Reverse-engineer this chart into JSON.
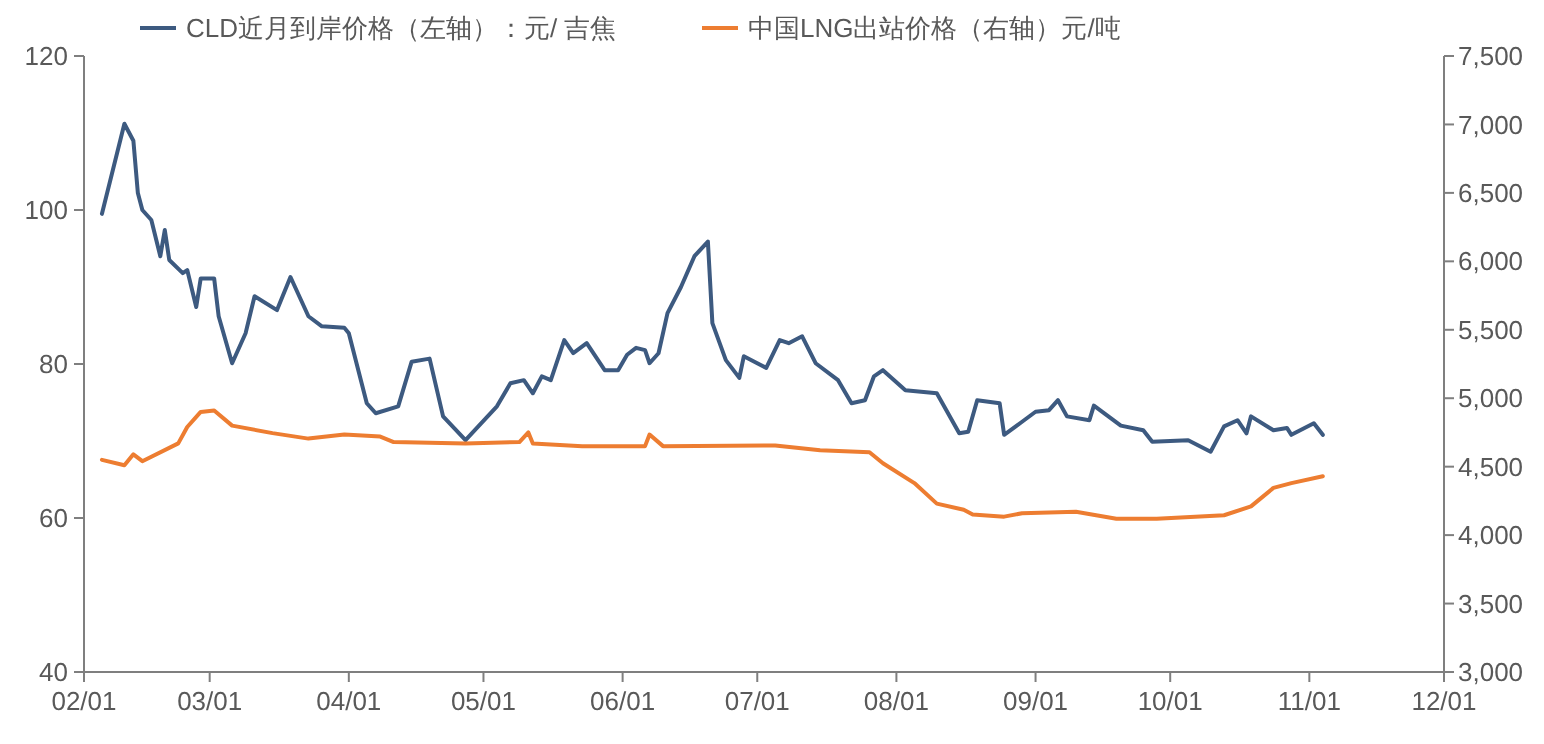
{
  "chart_data": {
    "type": "line",
    "xlim": [
      "--02-01",
      "--12-01"
    ],
    "xticks": [
      {
        "value": "--02-01",
        "label": "02/01"
      },
      {
        "value": "--03-01",
        "label": "03/01"
      },
      {
        "value": "--04-01",
        "label": "04/01"
      },
      {
        "value": "--05-01",
        "label": "05/01"
      },
      {
        "value": "--06-01",
        "label": "06/01"
      },
      {
        "value": "--07-01",
        "label": "07/01"
      },
      {
        "value": "--08-01",
        "label": "08/01"
      },
      {
        "value": "--09-01",
        "label": "09/01"
      },
      {
        "value": "--10-01",
        "label": "10/01"
      },
      {
        "value": "--11-01",
        "label": "11/01"
      },
      {
        "value": "--12-01",
        "label": "12/01"
      }
    ],
    "ylim": [
      40,
      120
    ],
    "yticks": [
      40,
      60,
      80,
      100,
      120
    ],
    "y2lim": [
      3000,
      7500
    ],
    "y2ticks": [
      {
        "value": 3000,
        "label": "3,000"
      },
      {
        "value": 3500,
        "label": "3,500"
      },
      {
        "value": 4000,
        "label": "4,000"
      },
      {
        "value": 4500,
        "label": "4,500"
      },
      {
        "value": 5000,
        "label": "5,000"
      },
      {
        "value": 5500,
        "label": "5,500"
      },
      {
        "value": 6000,
        "label": "6,000"
      },
      {
        "value": 6500,
        "label": "6,500"
      },
      {
        "value": 7000,
        "label": "7,000"
      },
      {
        "value": 7500,
        "label": "7,500"
      }
    ],
    "legend": "top",
    "grid": false,
    "marker": "none",
    "line_style": "solid",
    "series": [
      {
        "name": "CLD近月到岸价格（左轴）：元/ 吉焦",
        "color": "#3d5a80",
        "x": [
          "--02-05",
          "--02-10",
          "--02-12",
          "--02-13",
          "--02-14",
          "--02-16",
          "--02-18",
          "--02-19",
          "--02-20",
          "--02-23",
          "--02-24",
          "--02-26",
          "--02-27",
          "--03-02",
          "--03-03",
          "--03-06",
          "--03-09",
          "--03-11",
          "--03-16",
          "--03-19",
          "--03-23",
          "--03-26",
          "--03-31",
          "--04-01",
          "--04-05",
          "--04-07",
          "--04-12",
          "--04-15",
          "--04-19",
          "--04-22",
          "--04-27",
          "--05-04",
          "--05-07",
          "--05-10",
          "--05-12",
          "--05-14",
          "--05-16",
          "--05-19",
          "--05-21",
          "--05-24",
          "--05-28",
          "--05-31",
          "--06-02",
          "--06-04",
          "--06-06",
          "--06-07",
          "--06-09",
          "--06-11",
          "--06-14",
          "--06-17",
          "--06-20",
          "--06-21",
          "--06-24",
          "--06-27",
          "--06-28",
          "--07-03",
          "--07-06",
          "--07-08",
          "--07-11",
          "--07-14",
          "--07-19",
          "--07-22",
          "--07-25",
          "--07-27",
          "--07-29",
          "--08-03",
          "--08-10",
          "--08-15",
          "--08-17",
          "--08-19",
          "--08-24",
          "--08-25",
          "--08-29",
          "--09-01",
          "--09-04",
          "--09-06",
          "--09-08",
          "--09-13",
          "--09-14",
          "--09-20",
          "--09-25",
          "--09-27",
          "--10-05",
          "--10-10",
          "--10-13",
          "--10-16",
          "--10-18",
          "--10-19",
          "--10-24",
          "--10-27",
          "--10-28",
          "--11-02",
          "--11-04"
        ],
        "values": [
          99.5,
          111.2,
          109,
          102.2,
          100,
          98.7,
          94,
          97.4,
          93.5,
          91.8,
          92.2,
          87.4,
          91.1,
          91.1,
          86.2,
          80.1,
          84,
          88.8,
          87,
          91.3,
          86.2,
          84.9,
          84.7,
          84,
          74.9,
          73.6,
          74.5,
          80.3,
          80.7,
          73.2,
          70.1,
          74.5,
          77.5,
          77.9,
          76.2,
          78.4,
          77.9,
          83.1,
          81.4,
          82.7,
          79.2,
          79.2,
          81.2,
          82.1,
          81.8,
          80.1,
          81.4,
          86.6,
          90,
          94,
          95.9,
          85.3,
          80.5,
          78.2,
          81,
          79.5,
          83.1,
          82.7,
          83.6,
          80.1,
          77.9,
          74.9,
          75.3,
          78.4,
          79.2,
          76.6,
          76.2,
          71,
          71.2,
          75.3,
          74.9,
          70.8,
          72.5,
          73.8,
          74,
          75.3,
          73.2,
          72.7,
          74.6,
          72,
          71.4,
          69.9,
          70.1,
          68.6,
          71.9,
          72.7,
          71,
          73.2,
          71.4,
          71.7,
          70.8,
          72.3,
          70.8
        ]
      },
      {
        "name": "中国LNG出站价格（右轴）元/吨",
        "color": "#ed7d31",
        "axis": "y2",
        "x": [
          "--02-05",
          "--02-10",
          "--02-12",
          "--02-14",
          "--02-22",
          "--02-24",
          "--02-27",
          "--03-02",
          "--03-06",
          "--03-15",
          "--03-23",
          "--03-31",
          "--04-08",
          "--04-11",
          "--04-27",
          "--05-09",
          "--05-11",
          "--05-12",
          "--05-23",
          "--06-06",
          "--06-07",
          "--06-10",
          "--07-05",
          "--07-15",
          "--07-26",
          "--07-29",
          "--08-05",
          "--08-10",
          "--08-16",
          "--08-18",
          "--08-25",
          "--08-29",
          "--09-10",
          "--09-19",
          "--09-28",
          "--10-13",
          "--10-19",
          "--10-24",
          "--10-28",
          "--11-04"
        ],
        "values": [
          4550,
          4510,
          4590,
          4540,
          4670,
          4790,
          4900,
          4910,
          4800,
          4745,
          4705,
          4735,
          4720,
          4680,
          4670,
          4680,
          4750,
          4670,
          4650,
          4650,
          4735,
          4650,
          4655,
          4620,
          4605,
          4525,
          4380,
          4230,
          4185,
          4150,
          4135,
          4160,
          4170,
          4120,
          4120,
          4145,
          4210,
          4345,
          4380,
          4430
        ]
      }
    ]
  }
}
